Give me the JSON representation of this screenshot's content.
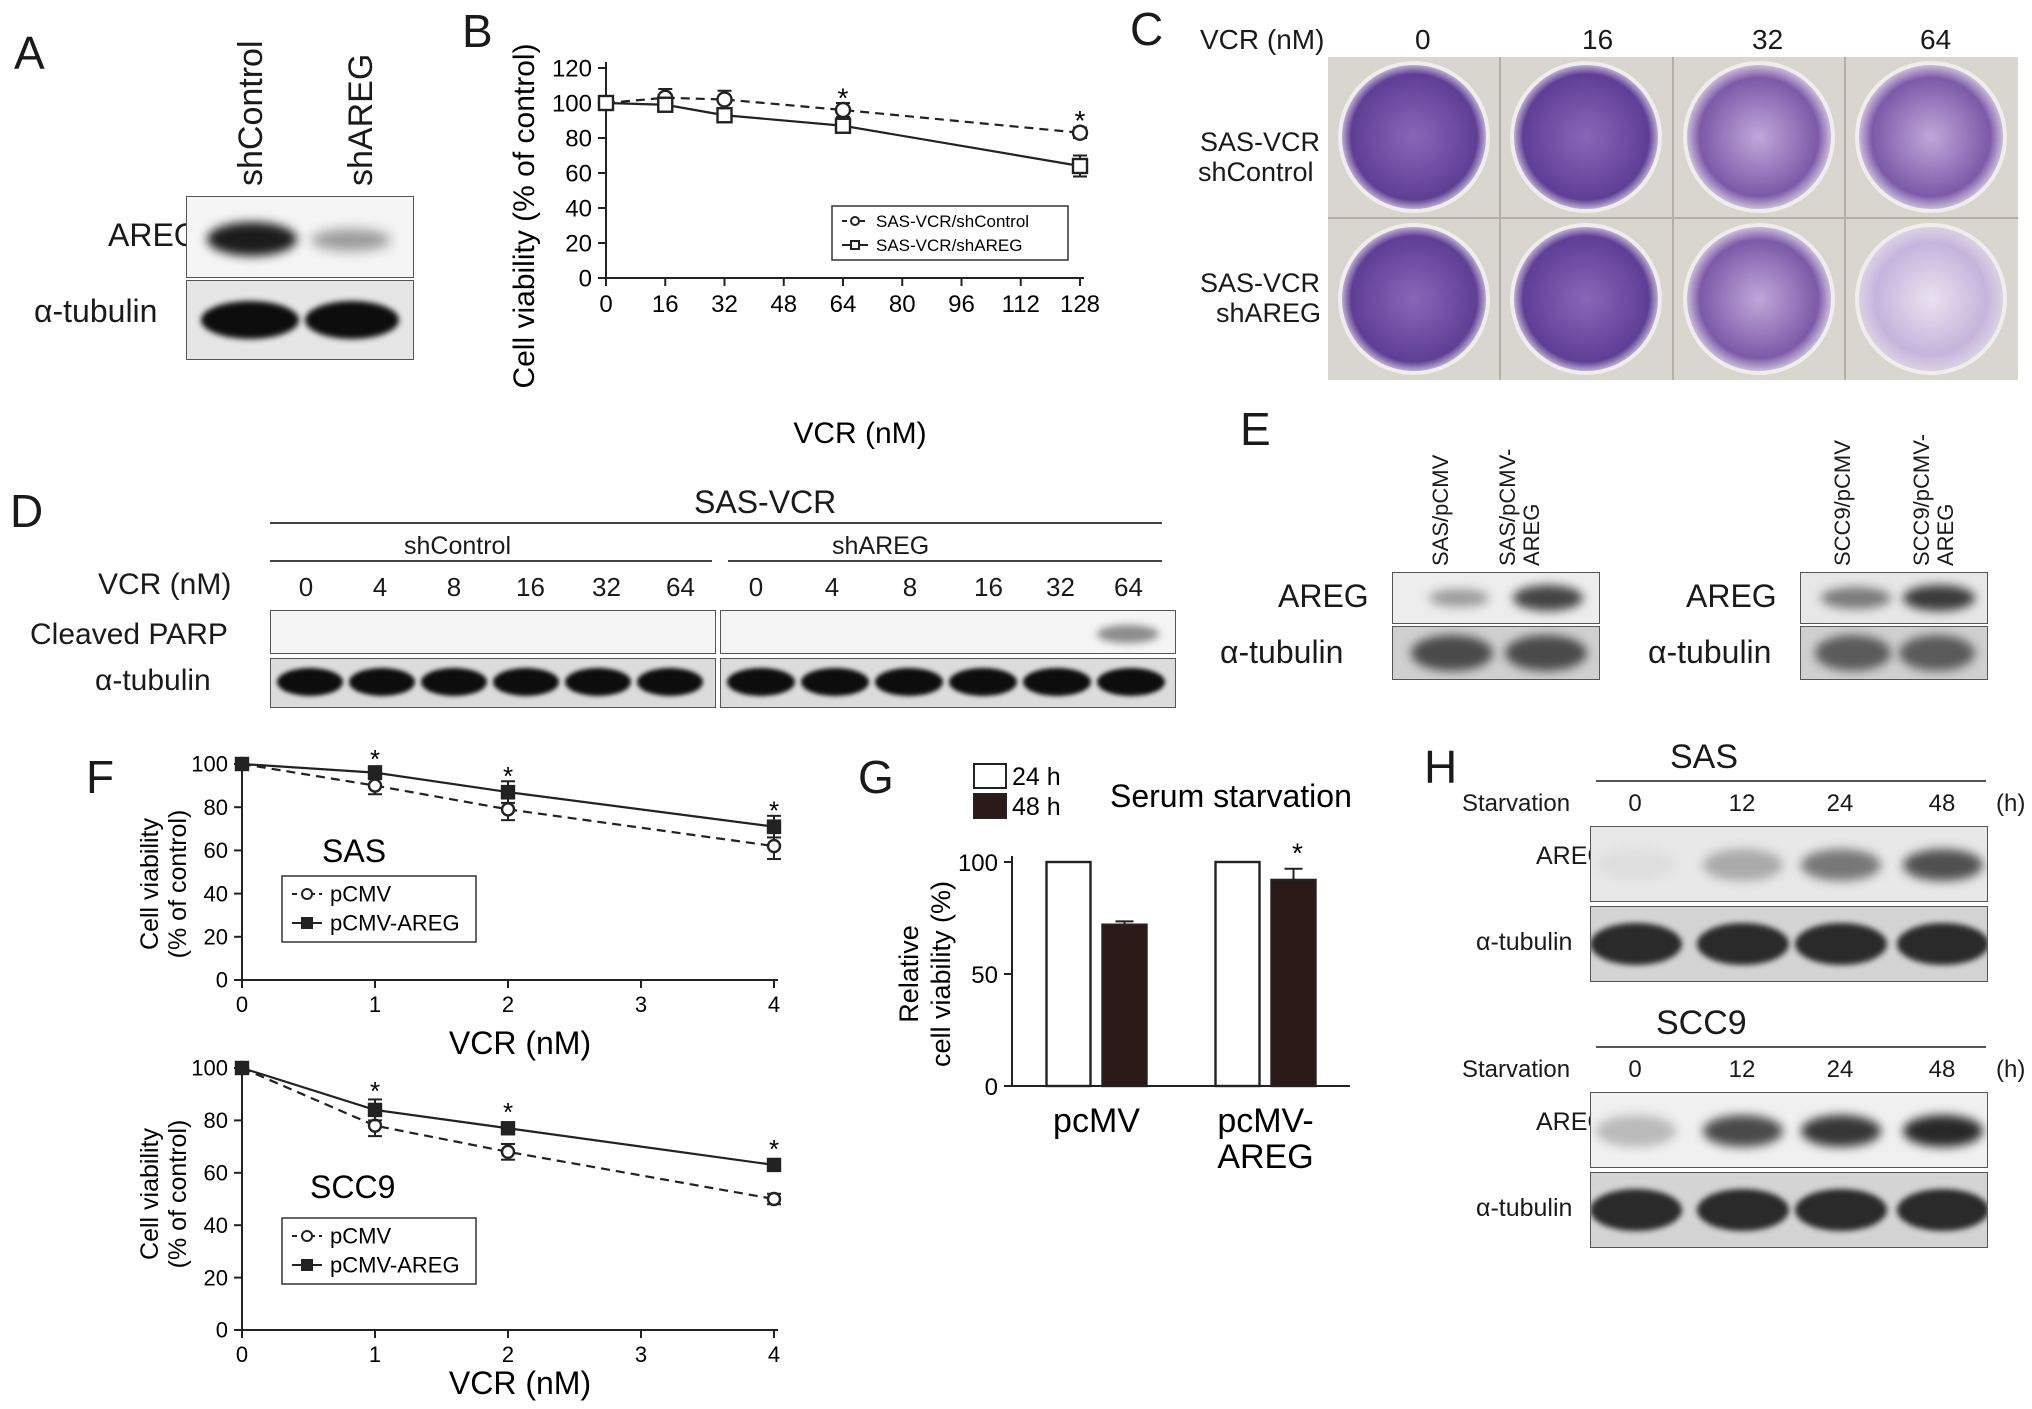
{
  "panels": {
    "A": {
      "label": "A",
      "lanes": [
        "shControl",
        "shAREG"
      ],
      "rows": [
        "AREG",
        "α-tubulin"
      ]
    },
    "B": {
      "label": "B"
    },
    "C": {
      "label": "C",
      "vcr_label": "VCR (nM)",
      "doses": [
        "0",
        "16",
        "32",
        "64"
      ],
      "row1": [
        "SAS-VCR",
        "shControl"
      ],
      "row2": [
        "SAS-VCR",
        "shAREG"
      ]
    },
    "D": {
      "label": "D",
      "title": "SAS-VCR",
      "group1": "shControl",
      "group2": "shAREG",
      "vcr_label": "VCR (nM)",
      "doses": [
        "0",
        "4",
        "8",
        "16",
        "32",
        "64",
        "0",
        "4",
        "8",
        "16",
        "32",
        "64"
      ],
      "rows": [
        "Cleaved PARP",
        "α-tubulin"
      ]
    },
    "E": {
      "label": "E",
      "lanes_left": [
        "SAS/pCMV",
        "SAS/pCMV-AREG"
      ],
      "lanes_right": [
        "SCC9/pCMV",
        "SCC9/pCMV-AREG"
      ],
      "rows": [
        "AREG",
        "α-tubulin"
      ]
    },
    "F": {
      "label": "F"
    },
    "G": {
      "label": "G"
    },
    "H": {
      "label": "H",
      "top_title": "SAS",
      "bottom_title": "SCC9",
      "starvation_label": "Starvation",
      "times": [
        "0",
        "12",
        "24",
        "48"
      ],
      "unit": "(h)",
      "rows": [
        "AREG",
        "α-tubulin"
      ]
    }
  },
  "chart_data": [
    {
      "id": "B",
      "type": "line",
      "xlabel": "VCR (nM)",
      "ylabel": "Cell viability (% of control)",
      "xlim": [
        0,
        128
      ],
      "ylim": [
        0,
        120
      ],
      "xticks": [
        0,
        16,
        32,
        48,
        64,
        80,
        96,
        112,
        128
      ],
      "yticks": [
        0,
        20,
        40,
        60,
        80,
        100,
        120
      ],
      "legend_position": "lower-right",
      "series": [
        {
          "name": "SAS-VCR/shControl",
          "marker": "circle",
          "dash": true,
          "x": [
            0,
            16,
            32,
            64,
            128
          ],
          "y": [
            100,
            103,
            102,
            96,
            83
          ],
          "err": [
            2,
            5,
            5,
            4,
            3
          ]
        },
        {
          "name": "SAS-VCR/shAREG",
          "marker": "square",
          "dash": false,
          "x": [
            0,
            16,
            32,
            64,
            128
          ],
          "y": [
            100,
            99,
            93,
            87,
            64
          ],
          "err": [
            2,
            3,
            3,
            2,
            6
          ]
        }
      ],
      "significance": [
        {
          "x": 64,
          "y": 101,
          "text": "*"
        },
        {
          "x": 128,
          "y": 88,
          "text": "*"
        }
      ]
    },
    {
      "id": "F-SAS",
      "type": "line",
      "cell_line": "SAS",
      "xlabel": "VCR (nM)",
      "ylabel": "Cell viability (% of control)",
      "xlim": [
        0,
        4
      ],
      "ylim": [
        0,
        100
      ],
      "xticks": [
        0,
        1,
        2,
        3,
        4
      ],
      "yticks": [
        0,
        20,
        40,
        60,
        80,
        100
      ],
      "legend_position": "lower-left",
      "series": [
        {
          "name": "pCMV",
          "marker": "circle",
          "dash": true,
          "x": [
            0,
            1,
            2,
            4
          ],
          "y": [
            100,
            90,
            79,
            62
          ],
          "err": [
            1,
            4,
            5,
            6
          ]
        },
        {
          "name": "pCMV-AREG",
          "marker": "square",
          "dash": false,
          "x": [
            0,
            1,
            2,
            4
          ],
          "y": [
            100,
            96,
            87,
            71
          ],
          "err": [
            1,
            3,
            5,
            5
          ]
        }
      ],
      "significance": [
        {
          "x": 1,
          "y": 101,
          "text": "*"
        },
        {
          "x": 2,
          "y": 93,
          "text": "*"
        },
        {
          "x": 4,
          "y": 77,
          "text": "*"
        }
      ]
    },
    {
      "id": "F-SCC9",
      "type": "line",
      "cell_line": "SCC9",
      "xlabel": "VCR (nM)",
      "ylabel": "Cell viability (% of control)",
      "xlim": [
        0,
        4
      ],
      "ylim": [
        0,
        100
      ],
      "xticks": [
        0,
        1,
        2,
        3,
        4
      ],
      "yticks": [
        0,
        20,
        40,
        60,
        80,
        100
      ],
      "legend_position": "lower-left",
      "series": [
        {
          "name": "pCMV",
          "marker": "circle",
          "dash": true,
          "x": [
            0,
            1,
            2,
            4
          ],
          "y": [
            100,
            78,
            68,
            50
          ],
          "err": [
            1,
            4,
            3,
            2
          ]
        },
        {
          "name": "pCMV-AREG",
          "marker": "square",
          "dash": false,
          "x": [
            0,
            1,
            2,
            4
          ],
          "y": [
            100,
            84,
            77,
            63
          ],
          "err": [
            1,
            4,
            1,
            1
          ]
        }
      ],
      "significance": [
        {
          "x": 1,
          "y": 90,
          "text": "*"
        },
        {
          "x": 2,
          "y": 82,
          "text": "*"
        },
        {
          "x": 4,
          "y": 68,
          "text": "*"
        }
      ]
    },
    {
      "id": "G",
      "type": "bar",
      "title": "Serum starvation",
      "ylabel": "Relative cell viability (%)",
      "ylim": [
        0,
        100
      ],
      "yticks": [
        0,
        50,
        100
      ],
      "categories": [
        "pcMV",
        "pcMV-AREG"
      ],
      "legend_position": "top-left",
      "series": [
        {
          "name": "24 h",
          "fill": "#ffffff",
          "values": [
            100,
            100
          ],
          "err": [
            0,
            0
          ]
        },
        {
          "name": "48 h",
          "fill": "#2b1a18",
          "values": [
            72,
            92
          ],
          "err": [
            1.5,
            5
          ]
        }
      ],
      "significance": [
        {
          "category": 1,
          "series": 1,
          "text": "*"
        }
      ]
    }
  ]
}
